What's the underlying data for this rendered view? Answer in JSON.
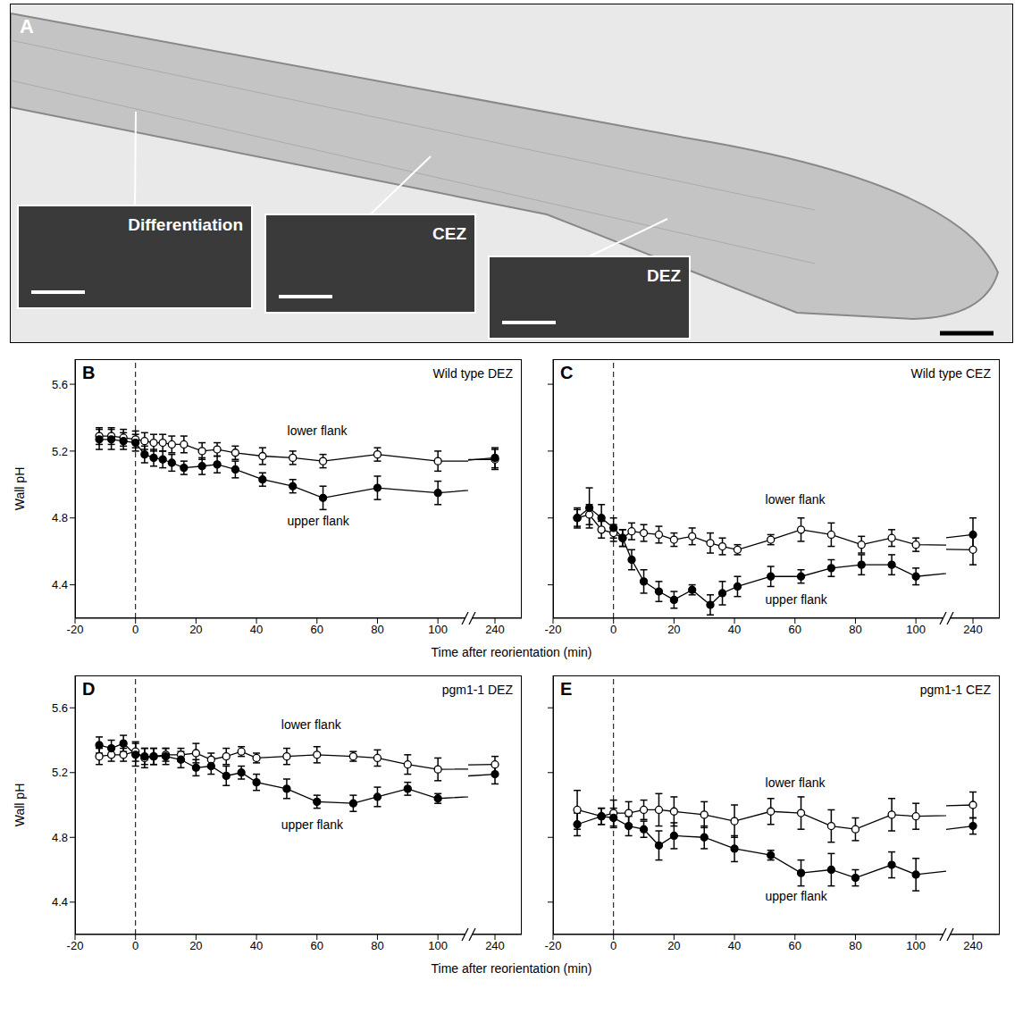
{
  "image_panel": {
    "panel_label": "A",
    "insets": [
      "Differentiation",
      "CEZ",
      "DEZ"
    ]
  },
  "chart_data": [
    {
      "type": "line",
      "panel_label": "B",
      "title": "Wild type DEZ",
      "y_label": "Wall pH",
      "x_label": "Time after reorientation (min)",
      "x": [
        -12,
        -8,
        -4,
        0,
        3,
        6,
        9,
        12,
        16,
        22,
        27,
        33,
        42,
        52,
        62,
        80,
        100,
        240
      ],
      "series": [
        {
          "name": "lower flank",
          "color": "#000000",
          "marker": "open_circle",
          "values": [
            5.29,
            5.29,
            5.28,
            5.27,
            5.26,
            5.25,
            5.25,
            5.24,
            5.24,
            5.2,
            5.21,
            5.19,
            5.17,
            5.16,
            5.14,
            5.18,
            5.14,
            5.15
          ],
          "errors": [
            0.05,
            0.05,
            0.05,
            0.05,
            0.05,
            0.05,
            0.05,
            0.05,
            0.05,
            0.05,
            0.04,
            0.04,
            0.05,
            0.04,
            0.04,
            0.04,
            0.06,
            0.06
          ]
        },
        {
          "name": "upper flank",
          "color": "#000000",
          "marker": "filled_circle",
          "values": [
            5.27,
            5.27,
            5.26,
            5.25,
            5.18,
            5.16,
            5.15,
            5.13,
            5.1,
            5.11,
            5.12,
            5.09,
            5.03,
            4.99,
            4.92,
            4.98,
            4.95,
            5.16
          ],
          "errors": [
            0.06,
            0.06,
            0.05,
            0.05,
            0.05,
            0.05,
            0.05,
            0.05,
            0.04,
            0.05,
            0.05,
            0.05,
            0.04,
            0.04,
            0.07,
            0.07,
            0.07,
            0.06
          ]
        }
      ],
      "xlim": [
        [
          -20,
          110
        ],
        [
          230,
          250
        ]
      ],
      "xticks": [
        -20,
        0,
        20,
        40,
        60,
        80,
        100,
        240
      ],
      "ylim": [
        4.2,
        5.75
      ],
      "yticks": [
        4.4,
        4.8,
        5.2,
        5.6
      ],
      "tick_labels": true,
      "annotations": [
        {
          "x": 0,
          "line_style": "dashed"
        }
      ]
    },
    {
      "type": "line",
      "panel_label": "C",
      "title": "Wild type CEZ",
      "x": [
        -12,
        -8,
        -4,
        0,
        3,
        6,
        10,
        15,
        20,
        26,
        32,
        36,
        41,
        52,
        62,
        72,
        82,
        92,
        100,
        240
      ],
      "series": [
        {
          "name": "lower flank",
          "color": "#000000",
          "marker": "open_circle",
          "values": [
            4.8,
            4.82,
            4.73,
            4.71,
            4.68,
            4.72,
            4.71,
            4.7,
            4.67,
            4.69,
            4.65,
            4.63,
            4.61,
            4.67,
            4.73,
            4.7,
            4.64,
            4.68,
            4.64,
            4.61
          ],
          "errors": [
            0.05,
            0.06,
            0.05,
            0.05,
            0.05,
            0.05,
            0.05,
            0.05,
            0.04,
            0.05,
            0.06,
            0.05,
            0.03,
            0.03,
            0.07,
            0.07,
            0.05,
            0.05,
            0.04,
            0.09
          ]
        },
        {
          "name": "upper flank",
          "color": "#000000",
          "marker": "filled_circle",
          "values": [
            4.8,
            4.86,
            4.8,
            4.74,
            4.68,
            4.55,
            4.42,
            4.36,
            4.31,
            4.37,
            4.28,
            4.35,
            4.39,
            4.45,
            4.45,
            4.5,
            4.52,
            4.52,
            4.45,
            4.7
          ],
          "errors": [
            0.06,
            0.12,
            0.08,
            0.06,
            0.05,
            0.06,
            0.07,
            0.06,
            0.05,
            0.03,
            0.06,
            0.07,
            0.06,
            0.06,
            0.04,
            0.05,
            0.06,
            0.06,
            0.05,
            0.1
          ]
        }
      ],
      "xlim": [
        [
          -20,
          110
        ],
        [
          230,
          250
        ]
      ],
      "xticks": [
        -20,
        0,
        20,
        40,
        60,
        80,
        100,
        240
      ],
      "ylim": [
        4.2,
        5.75
      ],
      "yticks": [
        4.4,
        4.8,
        5.2,
        5.6
      ],
      "tick_labels": "x",
      "annotations": [
        {
          "x": 0,
          "line_style": "dashed"
        }
      ]
    },
    {
      "type": "line",
      "panel_label": "D",
      "title": "pgm1-1 DEZ",
      "y_label": "Wall pH",
      "x_label": "Time after reorientation (min)",
      "x": [
        -12,
        -8,
        -4,
        0,
        3,
        6,
        10,
        15,
        20,
        25,
        30,
        35,
        40,
        50,
        60,
        72,
        80,
        90,
        100,
        240
      ],
      "series": [
        {
          "name": "lower flank",
          "color": "#000000",
          "marker": "open_circle",
          "values": [
            5.3,
            5.31,
            5.31,
            5.33,
            5.29,
            5.3,
            5.31,
            5.31,
            5.32,
            5.28,
            5.3,
            5.33,
            5.29,
            5.3,
            5.31,
            5.3,
            5.29,
            5.25,
            5.22,
            5.25
          ],
          "errors": [
            0.05,
            0.04,
            0.04,
            0.06,
            0.06,
            0.05,
            0.04,
            0.04,
            0.06,
            0.04,
            0.05,
            0.03,
            0.03,
            0.05,
            0.05,
            0.03,
            0.05,
            0.06,
            0.07,
            0.05
          ]
        },
        {
          "name": "upper flank",
          "color": "#000000",
          "marker": "filled_circle",
          "values": [
            5.37,
            5.35,
            5.38,
            5.31,
            5.3,
            5.3,
            5.3,
            5.28,
            5.23,
            5.24,
            5.18,
            5.2,
            5.14,
            5.1,
            5.02,
            5.01,
            5.05,
            5.1,
            5.04,
            5.19
          ],
          "errors": [
            0.05,
            0.05,
            0.05,
            0.07,
            0.05,
            0.05,
            0.05,
            0.05,
            0.05,
            0.05,
            0.06,
            0.04,
            0.05,
            0.06,
            0.04,
            0.05,
            0.06,
            0.04,
            0.03,
            0.06
          ]
        }
      ],
      "xlim": [
        [
          -20,
          110
        ],
        [
          230,
          250
        ]
      ],
      "xticks": [
        -20,
        0,
        20,
        40,
        60,
        80,
        100,
        240
      ],
      "ylim": [
        4.2,
        5.8
      ],
      "yticks": [
        4.4,
        4.8,
        5.2,
        5.6
      ],
      "tick_labels": true,
      "annotations": [
        {
          "x": 0,
          "line_style": "dashed"
        }
      ]
    },
    {
      "type": "line",
      "panel_label": "E",
      "title": "pgm1-1 CEZ",
      "x": [
        -12,
        -4,
        0,
        5,
        10,
        15,
        20,
        30,
        40,
        52,
        62,
        72,
        80,
        92,
        100,
        240
      ],
      "series": [
        {
          "name": "lower flank",
          "color": "#000000",
          "marker": "open_circle",
          "values": [
            4.97,
            4.93,
            4.95,
            4.95,
            4.97,
            4.97,
            4.96,
            4.94,
            4.9,
            4.96,
            4.95,
            4.87,
            4.85,
            4.94,
            4.93,
            5.0
          ],
          "errors": [
            0.12,
            0.05,
            0.08,
            0.07,
            0.06,
            0.1,
            0.09,
            0.08,
            0.1,
            0.08,
            0.1,
            0.1,
            0.07,
            0.1,
            0.08,
            0.08
          ]
        },
        {
          "name": "upper flank",
          "color": "#000000",
          "marker": "filled_circle",
          "values": [
            4.88,
            4.93,
            4.92,
            4.87,
            4.85,
            4.75,
            4.81,
            4.8,
            4.73,
            4.69,
            4.58,
            4.6,
            4.55,
            4.63,
            4.57,
            4.87
          ],
          "errors": [
            0.07,
            0.05,
            0.06,
            0.06,
            0.05,
            0.09,
            0.08,
            0.07,
            0.08,
            0.03,
            0.08,
            0.1,
            0.05,
            0.08,
            0.1,
            0.05
          ]
        }
      ],
      "xlim": [
        [
          -20,
          110
        ],
        [
          230,
          250
        ]
      ],
      "xticks": [
        -20,
        0,
        20,
        40,
        60,
        80,
        100,
        240
      ],
      "ylim": [
        4.2,
        5.8
      ],
      "yticks": [
        4.4,
        4.8,
        5.2,
        5.6
      ],
      "tick_labels": "x",
      "annotations": [
        {
          "x": 0,
          "line_style": "dashed"
        }
      ]
    }
  ]
}
